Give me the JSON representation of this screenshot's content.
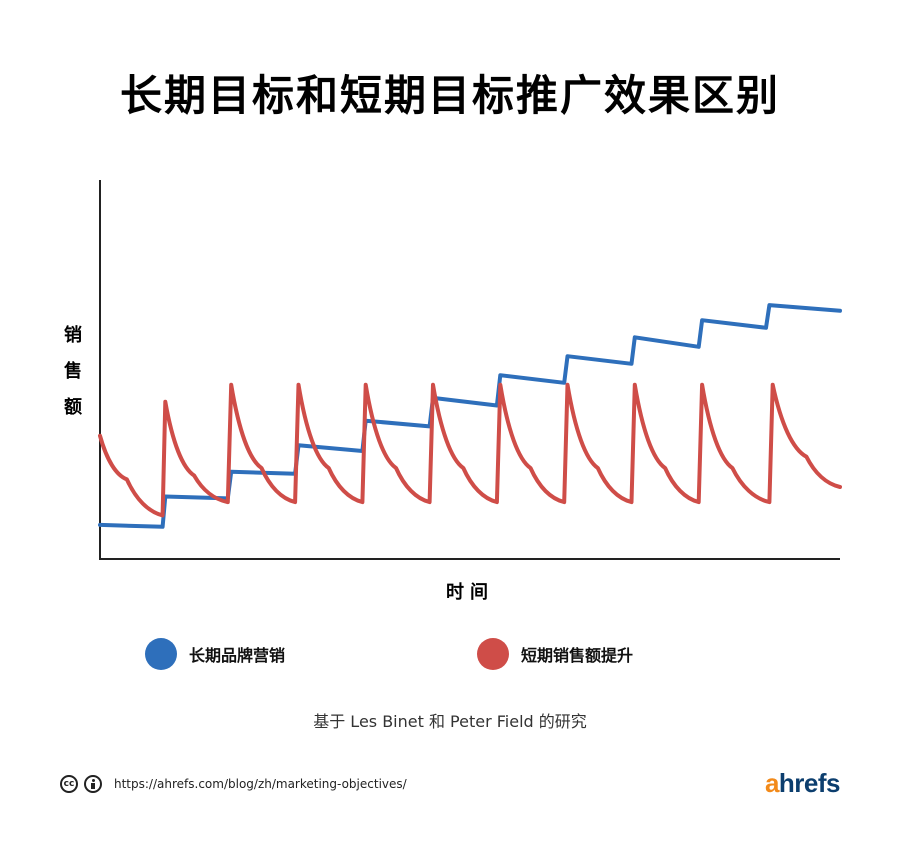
{
  "chart_data": {
    "type": "line",
    "title": "长期目标和短期目标推广效果区别",
    "ylabel": "销售额",
    "xlabel": "时间",
    "ylim": [
      0,
      100
    ],
    "xlim": [
      0,
      11
    ],
    "grid": false,
    "legend_placement": "bottom",
    "series": [
      {
        "name": "长期品牌营销",
        "color": "#2e6fbb",
        "x": [
          0,
          0.93,
          0.97,
          1.9,
          1.95,
          2.9,
          2.95,
          3.9,
          3.95,
          4.9,
          4.95,
          5.9,
          5.95,
          6.9,
          6.95,
          7.9,
          7.95,
          8.9,
          8.95,
          9.9,
          9.95,
          11
        ],
        "y": [
          9,
          8.5,
          16.5,
          16,
          23,
          22.5,
          30,
          28.5,
          36.5,
          35,
          42.5,
          40.5,
          48.5,
          46.5,
          53.5,
          51.5,
          58.5,
          56,
          63,
          61,
          67,
          65.5
        ]
      },
      {
        "name": "短期销售额提升",
        "color": "#cf4d48",
        "x": [
          0,
          0.4,
          0.93,
          0.97,
          1.4,
          1.9,
          1.95,
          2.4,
          2.9,
          2.95,
          3.4,
          3.9,
          3.95,
          4.4,
          4.9,
          4.95,
          5.4,
          5.9,
          5.95,
          6.4,
          6.9,
          6.95,
          7.4,
          7.9,
          7.95,
          8.4,
          8.9,
          8.95,
          9.4,
          9.95,
          10.0,
          10.5,
          11
        ],
        "y": [
          32.5,
          21,
          11.5,
          41.5,
          22,
          15,
          46,
          24,
          15,
          46,
          24,
          15,
          46,
          24,
          15,
          46,
          24,
          15,
          46,
          24,
          15,
          46,
          24,
          15,
          46,
          24,
          15,
          46,
          24,
          15,
          46,
          27,
          19
        ]
      }
    ]
  },
  "legend": {
    "long_term": "长期品牌营销",
    "short_term": "短期销售额提升",
    "long_term_color": "#2e6fbb",
    "short_term_color": "#cf4d48"
  },
  "ylabel_chars": [
    "销",
    "售",
    "额"
  ],
  "source_text": "基于 Les Binet 和 Peter Field 的研究",
  "footer": {
    "url": "https://ahrefs.com/blog/zh/marketing-objectives/",
    "cc_icon": "creative-commons-icon",
    "by_icon": "attribution-icon",
    "cc_text": "cc"
  },
  "brand": {
    "a": "a",
    "rest": "hrefs",
    "a_color": "#f28a1a",
    "rest_color": "#0c3e6e"
  }
}
